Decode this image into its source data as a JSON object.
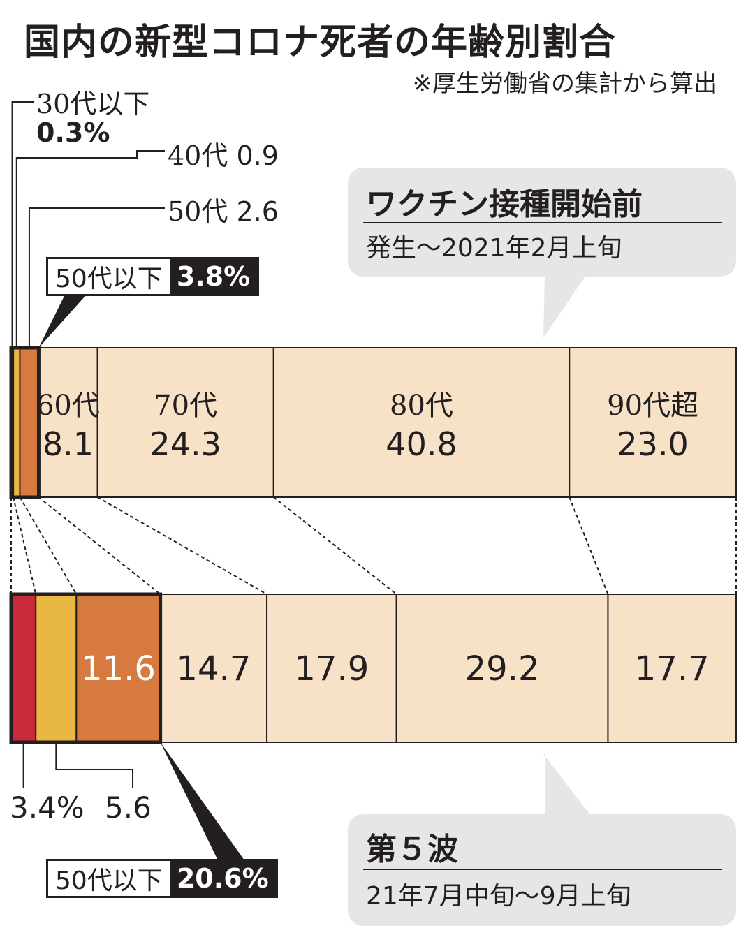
{
  "title": "国内の新型コロナ死者の年齢別割合",
  "note": "※厚生労働省の集計から算出",
  "colors": {
    "under30": "#c82a3c",
    "age40": "#e8b842",
    "age50": "#d67a40",
    "older": "#f7e2c8",
    "bubble": "#e6e6e6",
    "dark": "#231f20"
  },
  "chart_data": [
    {
      "type": "bar",
      "orientation": "horizontal-stacked",
      "period": "ワクチン接種開始前",
      "period_range": "発生～2021年2月上旬",
      "categories": [
        "30代以下",
        "40代",
        "50代",
        "60代",
        "70代",
        "80代",
        "90代超"
      ],
      "values": [
        0.3,
        0.9,
        2.6,
        8.1,
        24.3,
        40.8,
        23.0
      ],
      "data_labels": [
        "0.3%",
        "0.9",
        "2.6",
        "8.1",
        "24.3",
        "40.8",
        "23.0"
      ],
      "subtotal": {
        "label": "50代以下",
        "value": "3.8%"
      }
    },
    {
      "type": "bar",
      "orientation": "horizontal-stacked",
      "period": "第５波",
      "period_range": "21年7月中旬～9月上旬",
      "categories": [
        "30代以下",
        "40代",
        "50代",
        "60代",
        "70代",
        "80代",
        "90代超"
      ],
      "values": [
        3.4,
        5.6,
        11.6,
        14.7,
        17.9,
        29.2,
        17.7
      ],
      "data_labels": [
        "3.4%",
        "5.6",
        "11.6",
        "14.7",
        "17.9",
        "29.2",
        "17.7"
      ],
      "subtotal": {
        "label": "50代以下",
        "value": "20.6%"
      }
    }
  ],
  "labels": {
    "age30": "30代以下",
    "age40": "40代",
    "age50": "50代",
    "age60": "60代",
    "age70": "70代",
    "age80": "80代",
    "age90": "90代超"
  }
}
